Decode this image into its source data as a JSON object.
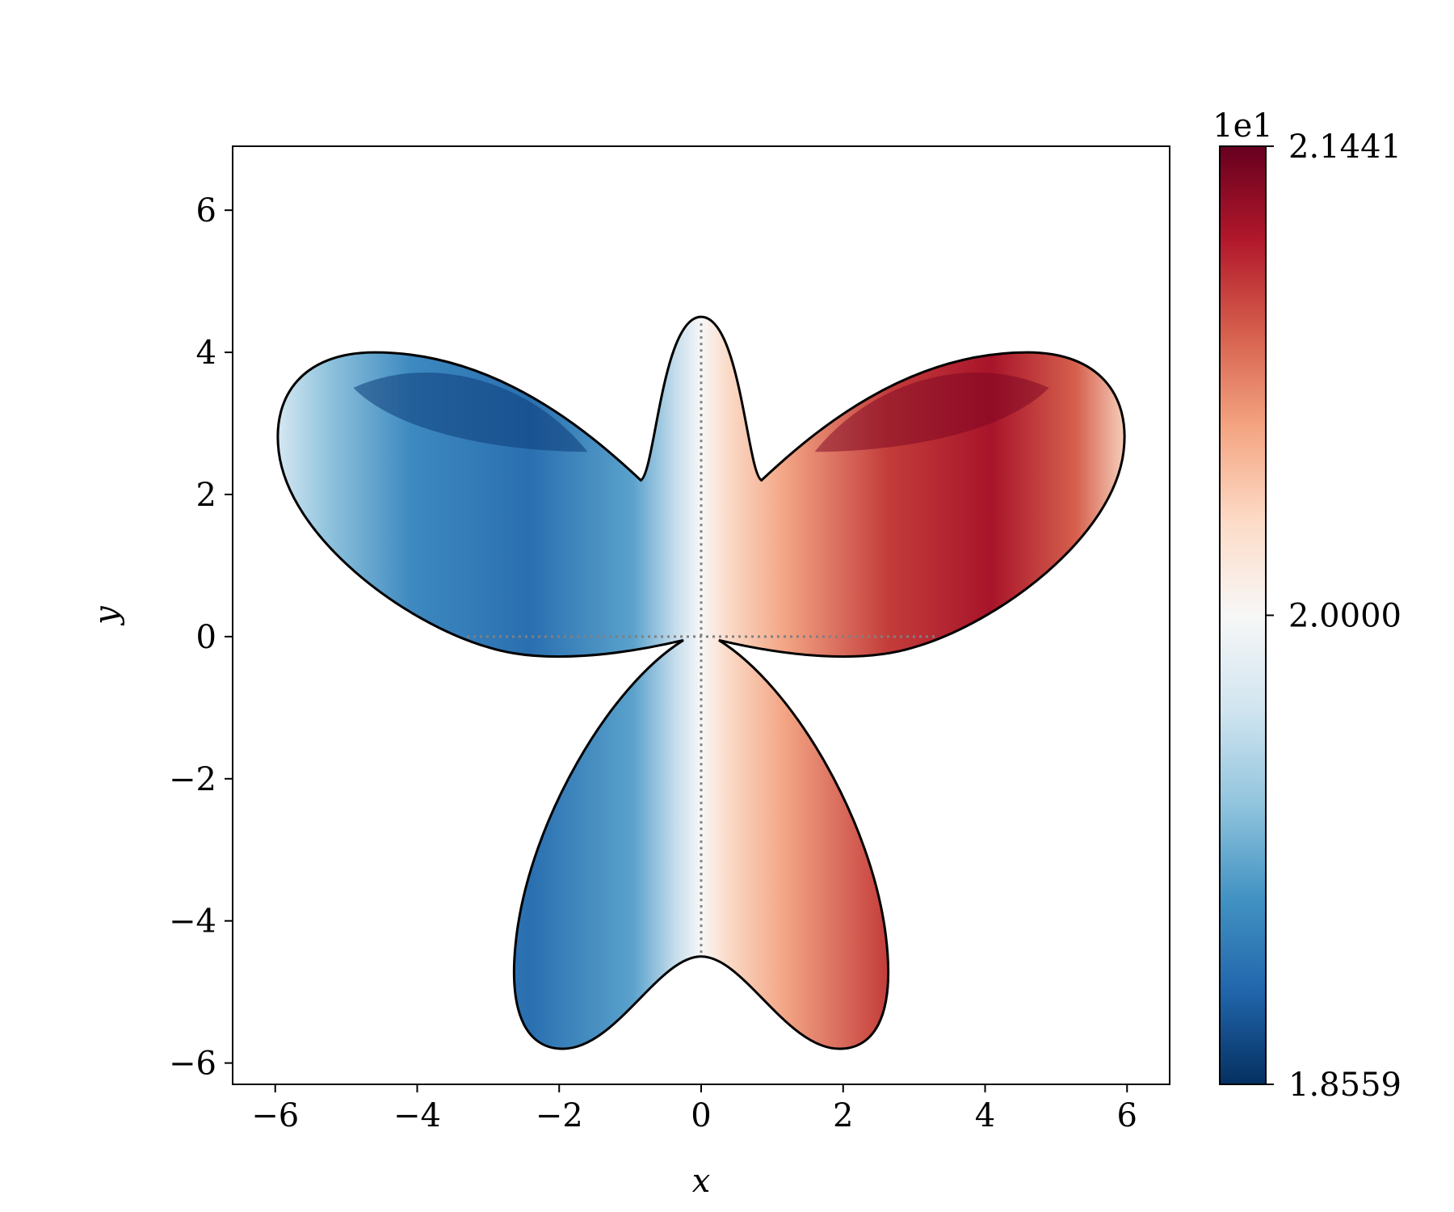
{
  "chart_data": {
    "type": "heatmap",
    "title": "",
    "xlabel": "x",
    "ylabel": "y",
    "xlim": [
      -6.6,
      6.6
    ],
    "ylim": [
      -6.3,
      6.9
    ],
    "x_ticks": [
      {
        "value": -6,
        "label": "−6"
      },
      {
        "value": -4,
        "label": "−4"
      },
      {
        "value": -2,
        "label": "−2"
      },
      {
        "value": 0,
        "label": "0"
      },
      {
        "value": 2,
        "label": "2"
      },
      {
        "value": 4,
        "label": "4"
      },
      {
        "value": 6,
        "label": "6"
      }
    ],
    "y_ticks": [
      {
        "value": -6,
        "label": "−6"
      },
      {
        "value": -4,
        "label": "−4"
      },
      {
        "value": -2,
        "label": "−2"
      },
      {
        "value": 0,
        "label": "0"
      },
      {
        "value": 2,
        "label": "2"
      },
      {
        "value": 4,
        "label": "4"
      },
      {
        "value": 6,
        "label": "6"
      }
    ],
    "grid": false,
    "colormap": "RdBu_r",
    "colorbar": {
      "multiplier_label": "1e1",
      "min": 1.8559,
      "max": 2.1441,
      "ticks": [
        {
          "value": 1.8559,
          "label": "1.8559"
        },
        {
          "value": 2.0,
          "label": "2.0000"
        },
        {
          "value": 2.1441,
          "label": "2.1441"
        }
      ]
    },
    "shape": {
      "description_points_upper_right_lobe": [
        [
          0.87,
          2.2
        ],
        [
          3.0,
          3.7
        ],
        [
          4.5,
          4.0
        ],
        [
          5.9,
          3.0
        ],
        [
          4.5,
          1.0
        ],
        [
          2.4,
          -0.3
        ],
        [
          0.25,
          -0.05
        ]
      ],
      "top_petal": [
        [
          -0.9,
          2.2
        ],
        [
          0.0,
          4.5
        ],
        [
          0.9,
          2.2
        ]
      ],
      "bottom_lobe_lowest": [
        [
          -1.95,
          -5.75
        ],
        [
          0.0,
          -4.5
        ],
        [
          1.95,
          -5.75
        ]
      ]
    },
    "guide_lines": [
      {
        "style": "dotted",
        "from": [
          0,
          -4.45
        ],
        "to": [
          0,
          4.45
        ]
      },
      {
        "style": "dotted",
        "from": [
          -3.3,
          0
        ],
        "to": [
          3.3,
          0
        ]
      }
    ]
  }
}
